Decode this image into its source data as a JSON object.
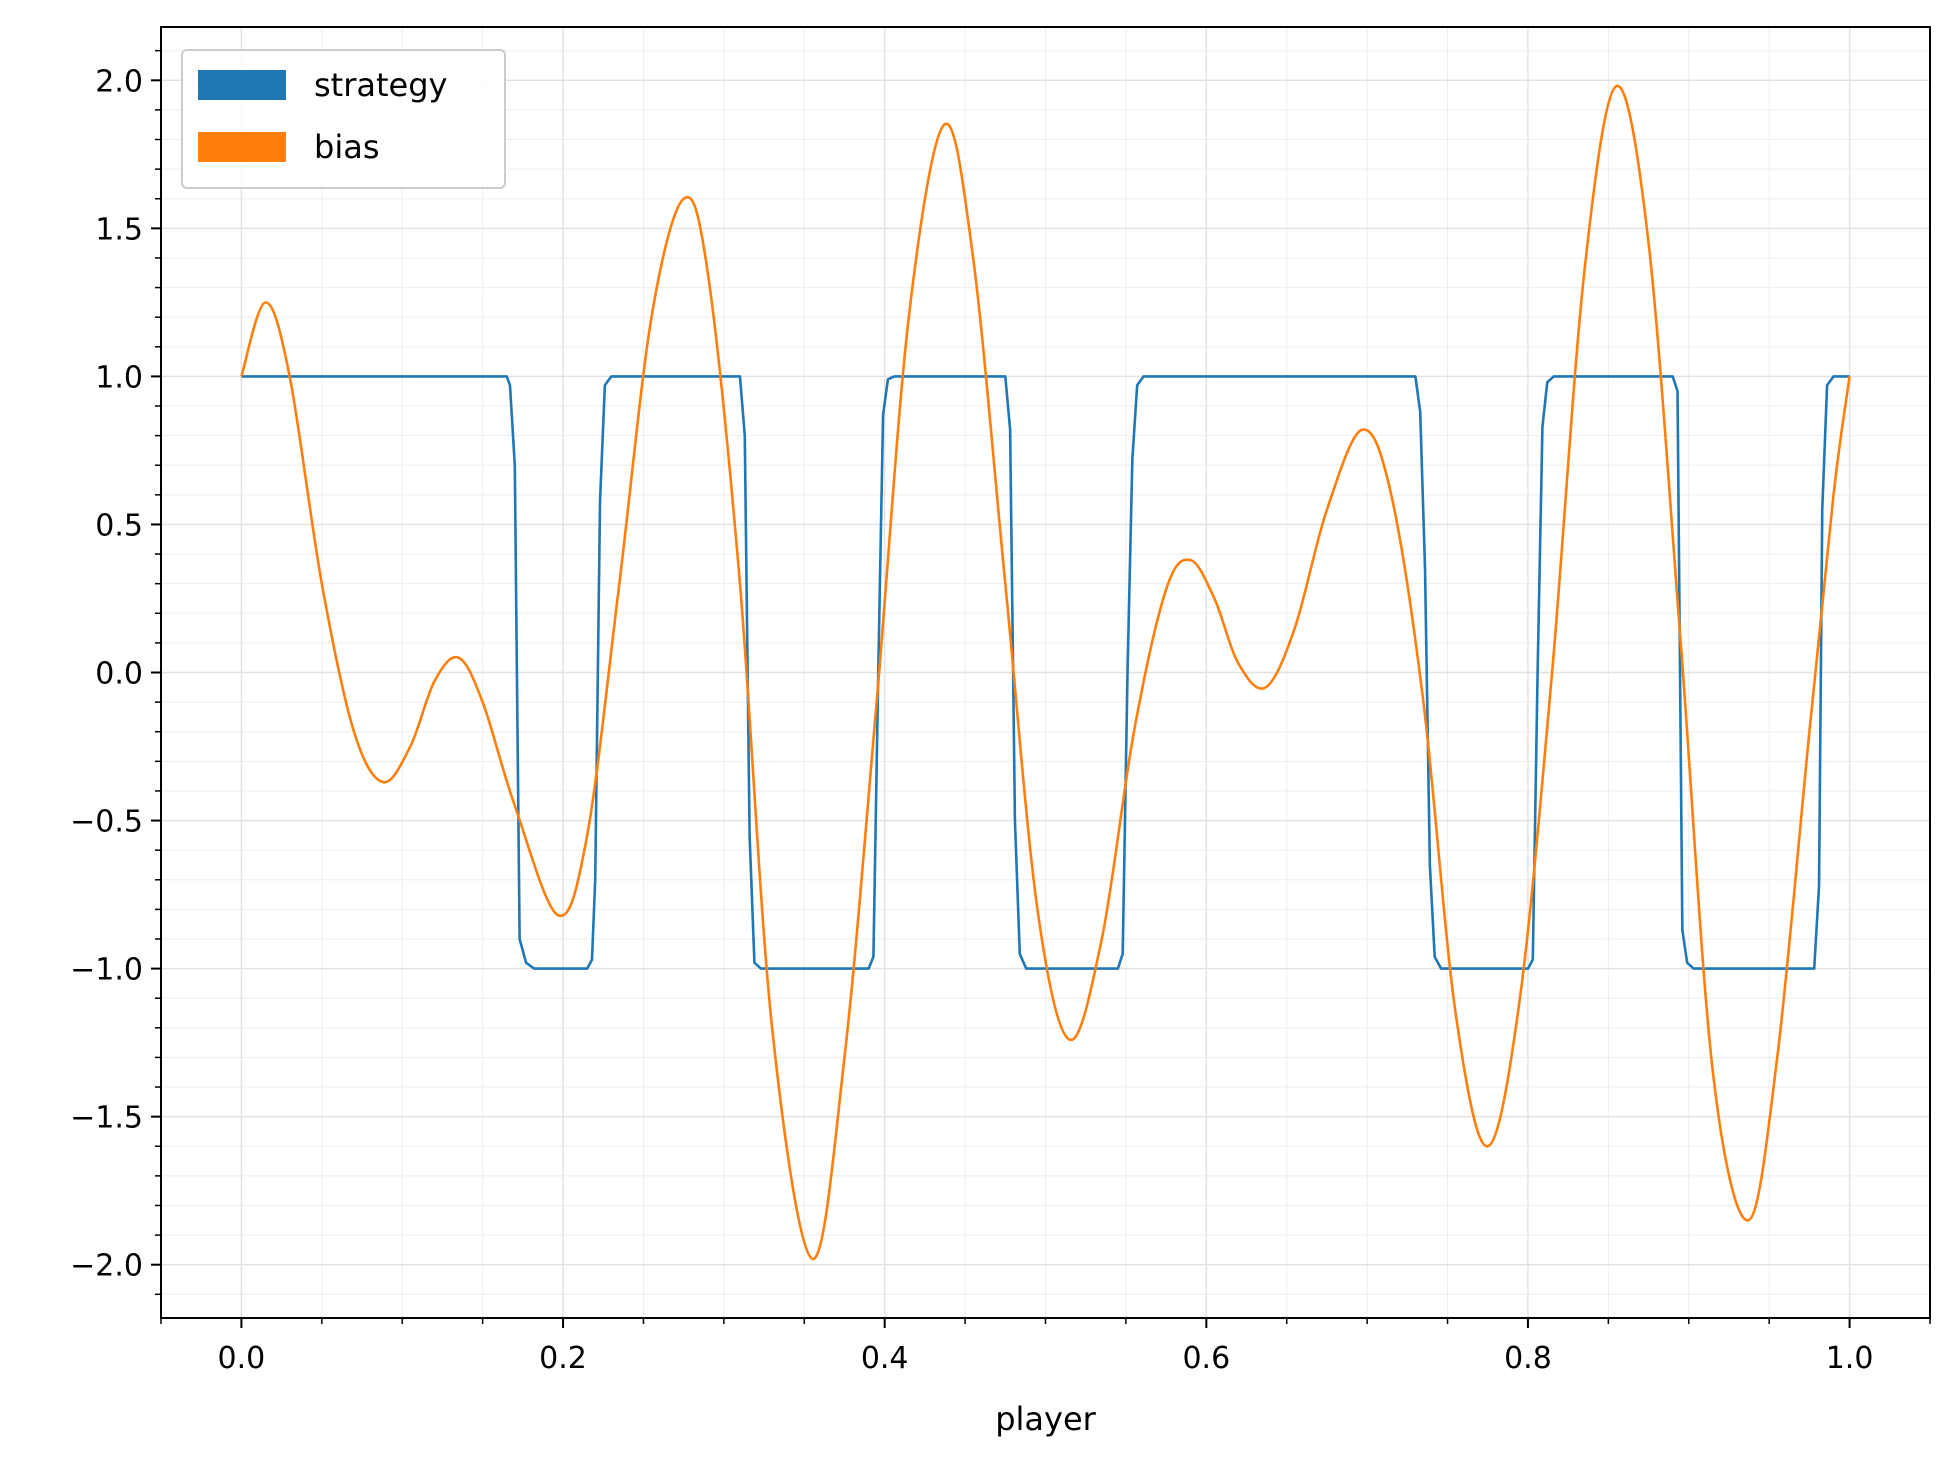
{
  "chart_data": {
    "type": "line",
    "title": "",
    "xlabel": "player",
    "ylabel": "",
    "xlim": [
      -0.05,
      1.05
    ],
    "ylim": [
      -2.18,
      2.18
    ],
    "xticks": [
      0.0,
      0.2,
      0.4,
      0.6,
      0.8,
      1.0
    ],
    "xtick_labels": [
      "0.0",
      "0.2",
      "0.4",
      "0.6",
      "0.8",
      "1.0"
    ],
    "yticks": [
      -2.0,
      -1.5,
      -1.0,
      -0.5,
      0.0,
      0.5,
      1.0,
      1.5,
      2.0
    ],
    "ytick_labels": [
      "−2.0",
      "−1.5",
      "−1.0",
      "−0.5",
      "0.0",
      "0.5",
      "1.0",
      "1.5",
      "2.0"
    ],
    "grid": "major and minor",
    "legend_position": "top-left",
    "series": [
      {
        "name": "strategy",
        "color": "#1f77b4",
        "points": [
          [
            0.0,
            1.0
          ],
          [
            0.165,
            1.0
          ],
          [
            0.167,
            0.97
          ],
          [
            0.17,
            0.7
          ],
          [
            0.173,
            -0.9
          ],
          [
            0.177,
            -0.98
          ],
          [
            0.182,
            -1.0
          ],
          [
            0.215,
            -1.0
          ],
          [
            0.218,
            -0.97
          ],
          [
            0.22,
            -0.7
          ],
          [
            0.223,
            0.58
          ],
          [
            0.226,
            0.97
          ],
          [
            0.23,
            1.0
          ],
          [
            0.31,
            1.0
          ],
          [
            0.313,
            0.8
          ],
          [
            0.316,
            -0.55
          ],
          [
            0.319,
            -0.98
          ],
          [
            0.323,
            -1.0
          ],
          [
            0.39,
            -1.0
          ],
          [
            0.393,
            -0.96
          ],
          [
            0.396,
            0.0
          ],
          [
            0.399,
            0.87
          ],
          [
            0.402,
            0.99
          ],
          [
            0.406,
            1.0
          ],
          [
            0.475,
            1.0
          ],
          [
            0.478,
            0.82
          ],
          [
            0.481,
            -0.5
          ],
          [
            0.484,
            -0.95
          ],
          [
            0.488,
            -1.0
          ],
          [
            0.545,
            -1.0
          ],
          [
            0.548,
            -0.95
          ],
          [
            0.551,
            0.0
          ],
          [
            0.554,
            0.72
          ],
          [
            0.557,
            0.97
          ],
          [
            0.561,
            1.0
          ],
          [
            0.73,
            1.0
          ],
          [
            0.733,
            0.88
          ],
          [
            0.736,
            0.35
          ],
          [
            0.739,
            -0.65
          ],
          [
            0.742,
            -0.96
          ],
          [
            0.746,
            -1.0
          ],
          [
            0.8,
            -1.0
          ],
          [
            0.803,
            -0.97
          ],
          [
            0.806,
            0.0
          ],
          [
            0.809,
            0.83
          ],
          [
            0.812,
            0.98
          ],
          [
            0.816,
            1.0
          ],
          [
            0.89,
            1.0
          ],
          [
            0.893,
            0.95
          ],
          [
            0.896,
            -0.87
          ],
          [
            0.899,
            -0.98
          ],
          [
            0.903,
            -1.0
          ],
          [
            0.978,
            -1.0
          ],
          [
            0.981,
            -0.72
          ],
          [
            0.983,
            0.55
          ],
          [
            0.986,
            0.97
          ],
          [
            0.99,
            1.0
          ],
          [
            1.0,
            1.0
          ]
        ]
      },
      {
        "name": "bias",
        "color": "#ff7f0e",
        "points": [
          [
            0.0,
            1.0
          ],
          [
            0.015,
            1.25
          ],
          [
            0.03,
            1.0
          ],
          [
            0.05,
            0.3
          ],
          [
            0.07,
            -0.2
          ],
          [
            0.088,
            -0.37
          ],
          [
            0.105,
            -0.25
          ],
          [
            0.12,
            -0.03
          ],
          [
            0.135,
            0.05
          ],
          [
            0.15,
            -0.1
          ],
          [
            0.17,
            -0.45
          ],
          [
            0.197,
            -0.82
          ],
          [
            0.215,
            -0.55
          ],
          [
            0.235,
            0.3
          ],
          [
            0.255,
            1.2
          ],
          [
            0.275,
            1.6
          ],
          [
            0.29,
            1.35
          ],
          [
            0.31,
            0.3
          ],
          [
            0.33,
            -1.2
          ],
          [
            0.355,
            -1.98
          ],
          [
            0.375,
            -1.3
          ],
          [
            0.395,
            -0.1
          ],
          [
            0.415,
            1.2
          ],
          [
            0.437,
            1.85
          ],
          [
            0.455,
            1.4
          ],
          [
            0.475,
            0.3
          ],
          [
            0.495,
            -0.8
          ],
          [
            0.515,
            -1.24
          ],
          [
            0.535,
            -0.9
          ],
          [
            0.555,
            -0.2
          ],
          [
            0.575,
            0.28
          ],
          [
            0.59,
            0.38
          ],
          [
            0.605,
            0.25
          ],
          [
            0.62,
            0.03
          ],
          [
            0.637,
            -0.05
          ],
          [
            0.655,
            0.15
          ],
          [
            0.675,
            0.55
          ],
          [
            0.697,
            0.82
          ],
          [
            0.715,
            0.6
          ],
          [
            0.735,
            -0.1
          ],
          [
            0.755,
            -1.15
          ],
          [
            0.775,
            -1.6
          ],
          [
            0.795,
            -1.1
          ],
          [
            0.815,
            0.0
          ],
          [
            0.835,
            1.35
          ],
          [
            0.855,
            1.98
          ],
          [
            0.875,
            1.45
          ],
          [
            0.895,
            0.1
          ],
          [
            0.915,
            -1.35
          ],
          [
            0.937,
            -1.85
          ],
          [
            0.955,
            -1.3
          ],
          [
            0.975,
            -0.2
          ],
          [
            0.99,
            0.6
          ],
          [
            1.0,
            1.0
          ]
        ]
      }
    ]
  }
}
